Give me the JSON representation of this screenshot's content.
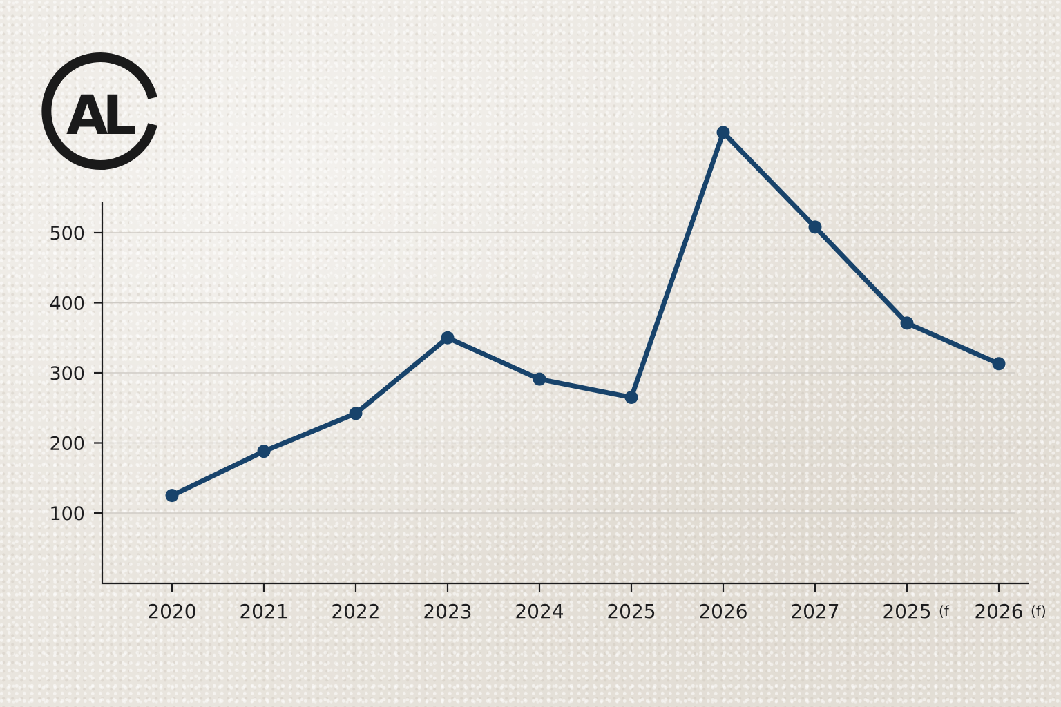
{
  "logo": {
    "text": "AL",
    "name": "logo-icon"
  },
  "colors": {
    "line": "#18436b",
    "axis": "#1d1d1f"
  },
  "chart_data": {
    "type": "line",
    "categories": [
      "2020",
      "2021",
      "2022",
      "2023",
      "2024",
      "2025",
      "2026",
      "2027",
      "2025",
      "2026"
    ],
    "category_suffixes": [
      "",
      "",
      "",
      "",
      "",
      "",
      "",
      "",
      "(f",
      "(f)"
    ],
    "series": [
      {
        "values": [
          125,
          188,
          242,
          350,
          291,
          265,
          643,
          508,
          371,
          313
        ]
      }
    ],
    "ylim": [
      0,
      545
    ],
    "yticks": [
      100,
      200,
      300,
      400,
      500
    ],
    "title": "",
    "xlabel": "",
    "ylabel": "",
    "grid": true
  }
}
